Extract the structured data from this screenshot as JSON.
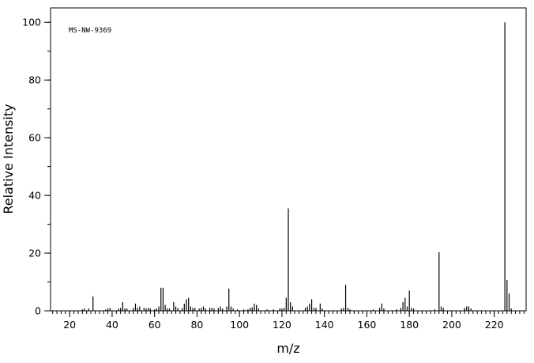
{
  "chart_data": {
    "type": "stick",
    "annotation": "MS-NW-9369",
    "x_label": "m/z",
    "y_label": "Relative Intensity",
    "x": [
      26,
      27,
      29,
      31,
      37,
      38,
      39,
      43,
      44,
      45,
      46,
      47,
      50,
      51,
      52,
      53,
      55,
      56,
      57,
      58,
      60,
      61,
      62,
      63,
      64,
      65,
      66,
      67,
      69,
      70,
      71,
      73,
      74,
      75,
      76,
      77,
      78,
      79,
      81,
      82,
      83,
      84,
      86,
      87,
      88,
      90,
      91,
      92,
      94,
      95,
      96,
      97,
      99,
      102,
      104,
      105,
      106,
      107,
      108,
      109,
      113,
      116,
      119,
      120,
      121,
      122,
      123,
      124,
      125,
      131,
      132,
      133,
      134,
      135,
      136,
      138,
      139,
      148,
      149,
      150,
      151,
      152,
      163,
      166,
      167,
      168,
      174,
      176,
      177,
      178,
      179,
      180,
      181,
      182,
      192,
      194,
      195,
      196,
      206,
      207,
      208,
      209,
      225,
      226,
      227,
      228
    ],
    "values": [
      0.5,
      0.8,
      0.8,
      5,
      0.5,
      0.8,
      1,
      0.8,
      1,
      3,
      0.8,
      0.8,
      1,
      2.5,
      1,
      1.5,
      1,
      0.8,
      1,
      0.8,
      0.5,
      0.8,
      1.5,
      8,
      8,
      2,
      0.8,
      0.8,
      3,
      1.5,
      1,
      1,
      2.5,
      4,
      4.5,
      1.5,
      1,
      1,
      0.8,
      1,
      1.5,
      0.8,
      1,
      1,
      0.8,
      1,
      1.5,
      0.8,
      1.5,
      7.7,
      1.5,
      0.8,
      0.5,
      0.5,
      0.5,
      1,
      1.2,
      2.5,
      2,
      0.8,
      0.5,
      0.5,
      0.8,
      0.8,
      1,
      4.5,
      35.5,
      3,
      1.5,
      1,
      1.5,
      2.5,
      4,
      1,
      1,
      2.5,
      0.8,
      0.8,
      1,
      9,
      1,
      0.5,
      0.5,
      1,
      2.5,
      0.8,
      0.5,
      1,
      3,
      4.5,
      1.5,
      7,
      1,
      0.8,
      0.5,
      20.3,
      1.5,
      1,
      1,
      1.5,
      1.5,
      0.8,
      100,
      10.7,
      6,
      0.8
    ],
    "color": "#000000",
    "xlim": [
      11,
      235
    ],
    "ylim": [
      0,
      105
    ],
    "xticks": [
      20,
      40,
      60,
      80,
      100,
      120,
      140,
      160,
      180,
      200,
      220
    ],
    "yticks": [
      0,
      20,
      40,
      60,
      80,
      100
    ],
    "x_minor_step": 2,
    "y_minor_step": 10
  }
}
